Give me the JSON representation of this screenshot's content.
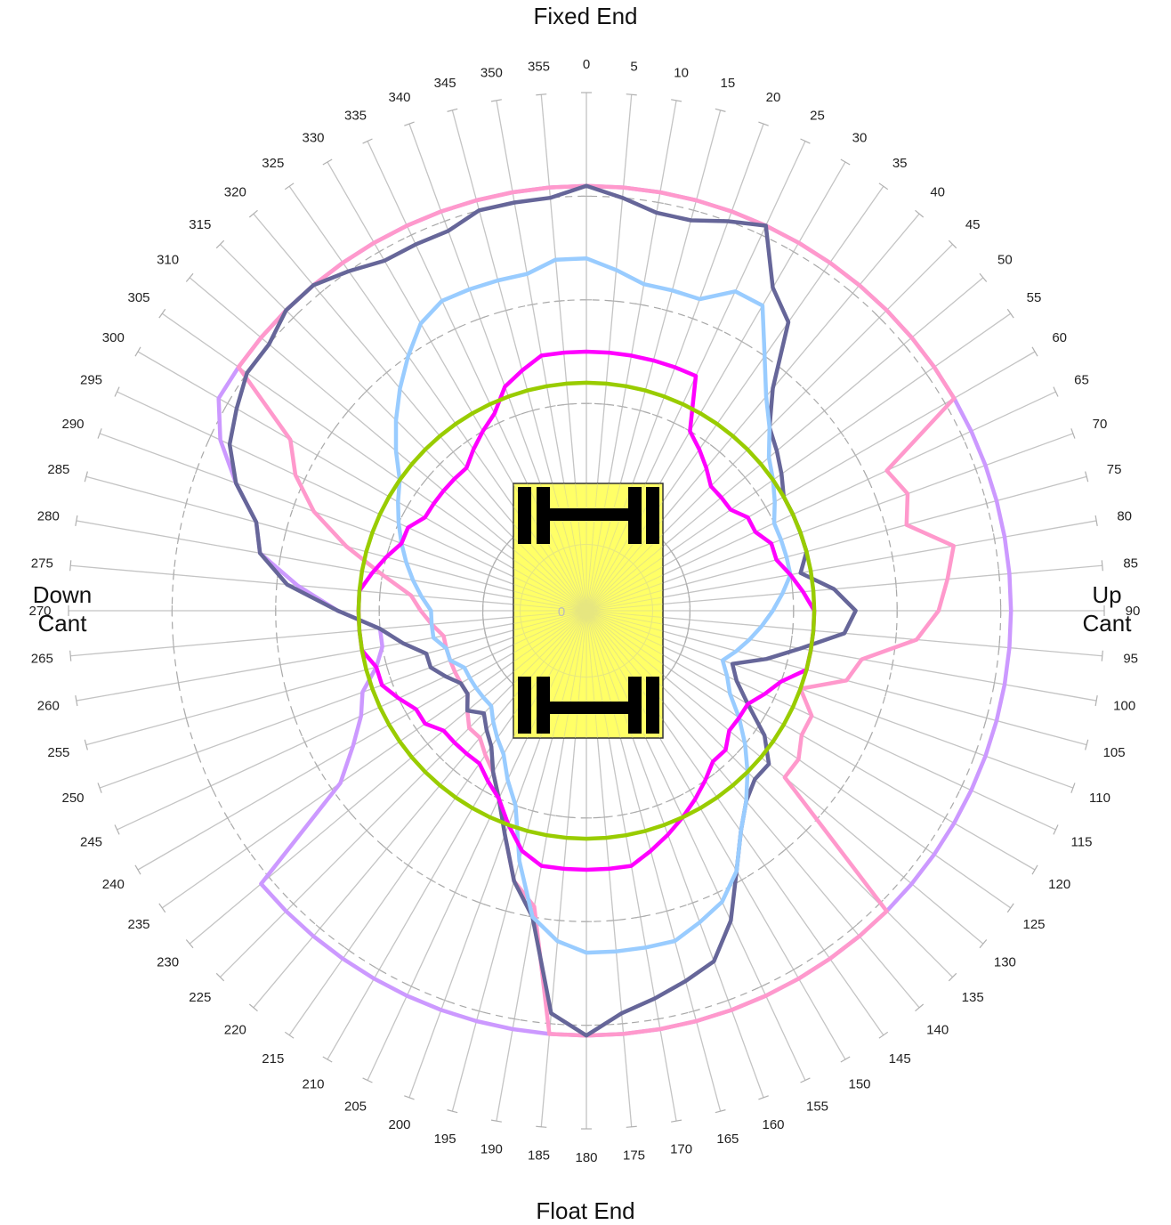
{
  "chart_data": {
    "type": "radar",
    "angles_deg": [
      0,
      5,
      10,
      15,
      20,
      25,
      30,
      35,
      40,
      45,
      50,
      55,
      60,
      65,
      70,
      75,
      80,
      85,
      90,
      95,
      100,
      105,
      110,
      115,
      120,
      125,
      130,
      135,
      140,
      145,
      150,
      155,
      160,
      165,
      170,
      175,
      180,
      185,
      190,
      195,
      200,
      205,
      210,
      215,
      220,
      225,
      230,
      235,
      240,
      245,
      250,
      255,
      260,
      265,
      270,
      275,
      280,
      285,
      290,
      295,
      300,
      305,
      310,
      315,
      320,
      325,
      330,
      335,
      340,
      345,
      350,
      355
    ],
    "angle_labels": [
      "0",
      "5",
      "10",
      "15",
      "20",
      "25",
      "30",
      "35",
      "40",
      "45",
      "50",
      "55",
      "60",
      "65",
      "70",
      "75",
      "80",
      "85",
      "90",
      "95",
      "100",
      "105",
      "110",
      "115",
      "120",
      "125",
      "130",
      "135",
      "140",
      "145",
      "150",
      "155",
      "160",
      "165",
      "170",
      "175",
      "180",
      "185",
      "190",
      "195",
      "200",
      "205",
      "210",
      "215",
      "220",
      "225",
      "230",
      "235",
      "240",
      "245",
      "250",
      "255",
      "260",
      "265",
      "270",
      "275",
      "280",
      "285",
      "290",
      "295",
      "300",
      "305",
      "310",
      "315",
      "320",
      "325",
      "330",
      "335",
      "340",
      "345",
      "350",
      "355"
    ],
    "radial_max": 5,
    "ring_values": [
      1,
      2,
      3,
      4,
      5
    ],
    "ring_label_visible": "0",
    "direction_labels": {
      "top": "Fixed End",
      "bottom": "Float End",
      "left_line1": "Down",
      "left_line2": "Cant",
      "right_line1": "Up",
      "right_line2": "Cant"
    },
    "series": [
      {
        "color": "#cc99ff",
        "values": [
          4.1,
          4.1,
          4.1,
          4.1,
          4.1,
          4.1,
          4.1,
          4.1,
          4.1,
          4.1,
          4.1,
          4.1,
          4.1,
          4.1,
          4.1,
          4.1,
          4.1,
          4.1,
          4.1,
          4.1,
          4.1,
          4.1,
          4.1,
          4.1,
          4.1,
          4.1,
          4.1,
          4.1,
          4.1,
          4.1,
          4.1,
          4.1,
          4.1,
          4.1,
          4.1,
          4.1,
          4.1,
          4.1,
          4.1,
          4.1,
          4.1,
          4.1,
          4.1,
          4.1,
          4.1,
          4.1,
          4.1,
          2.9,
          2.6,
          2.4,
          2.3,
          2.1,
          2.0,
          2.0,
          2.4,
          2.8,
          3.2,
          3.3,
          3.6,
          3.9,
          4.1,
          4.1,
          4.1,
          4.1,
          4.1,
          4.1,
          4.1,
          4.1,
          4.1,
          4.1,
          4.1,
          4.1
        ]
      },
      {
        "color": "#ff99cc",
        "values": [
          4.1,
          4.1,
          4.1,
          4.1,
          4.1,
          4.1,
          4.1,
          4.1,
          4.1,
          4.1,
          4.1,
          4.1,
          4.1,
          3.2,
          3.3,
          3.2,
          3.6,
          3.5,
          3.4,
          3.2,
          2.7,
          2.6,
          2.2,
          2.4,
          2.4,
          2.5,
          2.5,
          4.1,
          4.1,
          4.1,
          4.1,
          4.1,
          4.1,
          4.1,
          4.1,
          4.1,
          4.1,
          4.1,
          2.9,
          2.7,
          2.3,
          2.0,
          1.8,
          1.7,
          1.6,
          1.6,
          1.5,
          1.4,
          1.4,
          1.4,
          1.4,
          1.4,
          1.4,
          1.5,
          1.6,
          1.7,
          2.0,
          2.4,
          2.8,
          3.1,
          3.3,
          4.1,
          4.1,
          4.1,
          4.1,
          4.1,
          4.1,
          4.1,
          4.1,
          4.1,
          4.1,
          4.1
        ]
      },
      {
        "color": "#666699",
        "values": [
          4.1,
          4.0,
          3.9,
          3.9,
          4.0,
          4.1,
          3.6,
          3.4,
          2.8,
          2.5,
          2.4,
          2.3,
          2.2,
          2.2,
          2.2,
          2.2,
          2.1,
          2.4,
          2.6,
          2.5,
          2.1,
          1.8,
          1.5,
          1.6,
          1.8,
          2.1,
          2.3,
          2.3,
          2.4,
          2.6,
          2.9,
          3.3,
          3.6,
          3.7,
          3.8,
          3.9,
          4.1,
          3.9,
          3.0,
          2.7,
          2.3,
          2.0,
          1.8,
          1.6,
          1.5,
          1.4,
          1.5,
          1.4,
          1.4,
          1.5,
          1.6,
          1.6,
          1.8,
          2.0,
          2.4,
          2.9,
          3.2,
          3.3,
          3.6,
          3.8,
          3.9,
          4.0,
          4.0,
          4.1,
          4.1,
          4.0,
          3.9,
          3.9,
          3.9,
          4.0,
          4.0,
          4.0
        ]
      },
      {
        "color": "#99ccff",
        "values": [
          3.4,
          3.3,
          3.2,
          3.2,
          3.2,
          3.4,
          3.4,
          3.0,
          2.7,
          2.5,
          2.3,
          2.2,
          2.1,
          2.0,
          2.0,
          2.0,
          2.0,
          1.9,
          1.8,
          1.7,
          1.6,
          1.5,
          1.4,
          1.5,
          1.6,
          1.8,
          2.0,
          2.2,
          2.4,
          2.6,
          2.9,
          3.1,
          3.2,
          3.3,
          3.3,
          3.3,
          3.3,
          3.2,
          3.0,
          2.5,
          2.0,
          1.8,
          1.6,
          1.5,
          1.4,
          1.3,
          1.3,
          1.3,
          1.3,
          1.3,
          1.4,
          1.4,
          1.5,
          1.5,
          1.5,
          1.6,
          1.7,
          1.8,
          1.9,
          2.0,
          2.1,
          2.2,
          2.4,
          2.6,
          2.8,
          3.0,
          3.2,
          3.3,
          3.3,
          3.3,
          3.3,
          3.4
        ]
      },
      {
        "color": "#ff00ff",
        "values": [
          2.5,
          2.5,
          2.5,
          2.5,
          2.5,
          2.5,
          2.0,
          1.9,
          1.8,
          1.7,
          1.7,
          1.7,
          1.8,
          1.8,
          1.9,
          1.9,
          2.0,
          2.1,
          2.2,
          2.2,
          2.2,
          2.2,
          2.0,
          1.9,
          1.8,
          1.8,
          1.8,
          1.9,
          1.9,
          2.0,
          2.1,
          2.2,
          2.3,
          2.4,
          2.5,
          2.5,
          2.5,
          2.5,
          2.5,
          2.4,
          2.2,
          2.0,
          1.9,
          1.8,
          1.8,
          1.8,
          1.8,
          1.9,
          1.9,
          2.0,
          2.1,
          2.1,
          2.2,
          2.2,
          2.2,
          2.2,
          2.1,
          2.0,
          1.9,
          1.9,
          1.8,
          1.8,
          1.8,
          1.8,
          1.8,
          1.9,
          2.0,
          2.1,
          2.3,
          2.4,
          2.5,
          2.5
        ]
      },
      {
        "color": "#99cc00",
        "values": [
          2.2,
          2.2,
          2.2,
          2.2,
          2.2,
          2.2,
          2.2,
          2.2,
          2.2,
          2.2,
          2.2,
          2.2,
          2.2,
          2.2,
          2.2,
          2.2,
          2.2,
          2.2,
          2.2,
          2.2,
          2.2,
          2.2,
          2.2,
          2.2,
          2.2,
          2.2,
          2.2,
          2.2,
          2.2,
          2.2,
          2.2,
          2.2,
          2.2,
          2.2,
          2.2,
          2.2,
          2.2,
          2.2,
          2.2,
          2.2,
          2.2,
          2.2,
          2.2,
          2.2,
          2.2,
          2.2,
          2.2,
          2.2,
          2.2,
          2.2,
          2.2,
          2.2,
          2.2,
          2.2,
          2.2,
          2.2,
          2.2,
          2.2,
          2.2,
          2.2,
          2.2,
          2.2,
          2.2,
          2.2,
          2.2,
          2.2,
          2.2,
          2.2,
          2.2,
          2.2,
          2.2,
          2.2
        ]
      }
    ],
    "vehicle_icon": {
      "body_color": "#ffff66",
      "axle_color": "#000000"
    }
  }
}
